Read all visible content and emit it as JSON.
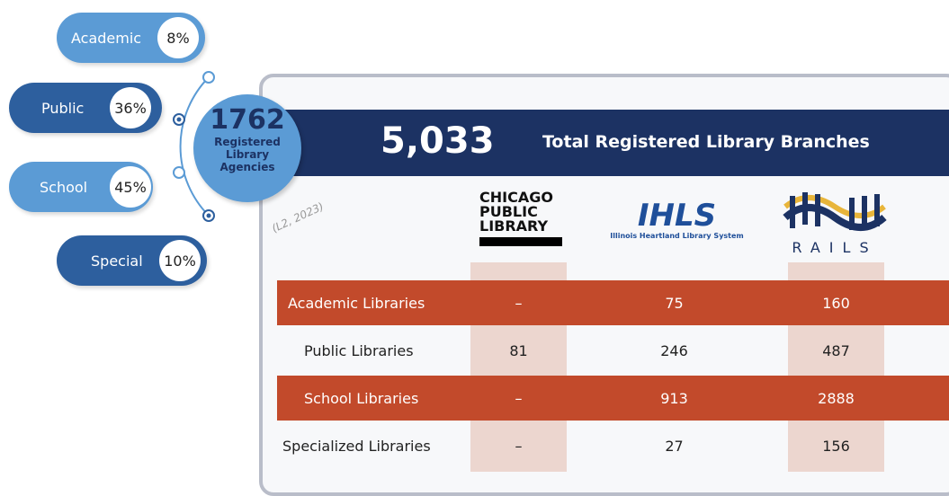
{
  "agencies": {
    "total": "1762",
    "label_lines": [
      "Registered",
      "Library",
      "Agencies"
    ],
    "source": "(L2, 2023)",
    "types": [
      {
        "name": "Academic",
        "share": "8%"
      },
      {
        "name": "Public",
        "share": "36%"
      },
      {
        "name": "School",
        "share": "45%"
      },
      {
        "name": "Special",
        "share": "10%"
      }
    ]
  },
  "branches": {
    "total": "5,033",
    "label": "Total Registered Library Branches"
  },
  "systems": {
    "chicago": [
      "CHICAGO",
      "PUBLIC",
      "LIBRARY"
    ],
    "ihls": {
      "mark": "IHLS",
      "name": "Illinois Heartland Library System"
    },
    "rails": "RAILS"
  },
  "table": {
    "rows": [
      [
        "Academic Libraries",
        "–",
        "75",
        "160"
      ],
      [
        "Public Libraries",
        "81",
        "246",
        "487"
      ],
      [
        "School Libraries",
        "–",
        "913",
        "2888"
      ],
      [
        "Specialized Libraries",
        "–",
        "27",
        "156"
      ]
    ]
  }
}
